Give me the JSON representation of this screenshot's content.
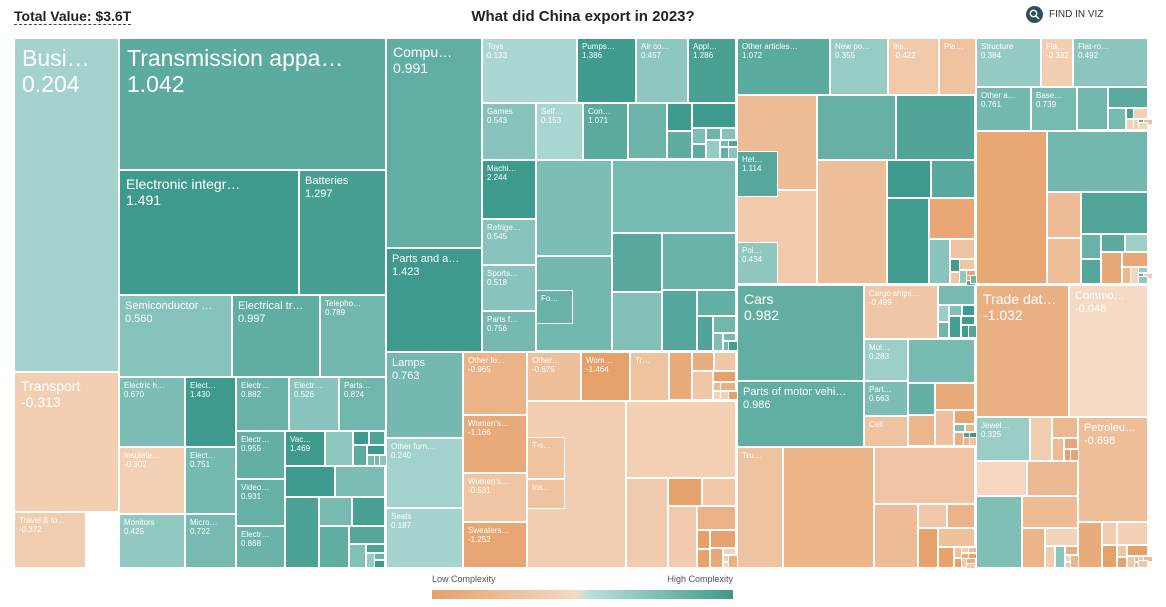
{
  "header": {
    "total_value": "Total Value: $3.6T",
    "title": "What did China export in 2023?",
    "find_label": "FIND IN VIZ",
    "find_icon": "search-icon"
  },
  "legend": {
    "low": "Low Complexity",
    "high": "High Complexity"
  },
  "colors": {
    "low": "#e6a06a",
    "mid_low": "#f6dcc8",
    "mid_high": "#b5ddd8",
    "high": "#3e9a8c"
  },
  "products": [
    {
      "name": "Busi…",
      "value": "0.204"
    },
    {
      "name": "Transmission appa…",
      "value": "1.042"
    },
    {
      "name": "Electronic integr…",
      "value": "1.491"
    },
    {
      "name": "Batteries",
      "value": "1.297"
    },
    {
      "name": "Semiconductor …",
      "value": "0.560"
    },
    {
      "name": "Electrical tr…",
      "value": "0.997"
    },
    {
      "name": "Telepho…",
      "value": "0.789"
    },
    {
      "name": "Transport",
      "value": "-0.313"
    },
    {
      "name": "Travel & to…",
      "value": "-0.372"
    },
    {
      "name": "Electric h…",
      "value": "0.670"
    },
    {
      "name": "Elect…",
      "value": "1.430"
    },
    {
      "name": "Insulate…",
      "value": "-0.302"
    },
    {
      "name": "Elect…",
      "value": "0.751"
    },
    {
      "name": "Monitors",
      "value": "0.425"
    },
    {
      "name": "Micro…",
      "value": "0.722"
    },
    {
      "name": "Electr…",
      "value": "0.882"
    },
    {
      "name": "Electr…",
      "value": "0.526"
    },
    {
      "name": "Parts…",
      "value": "0.824"
    },
    {
      "name": "Electr…",
      "value": "0.955"
    },
    {
      "name": "Vac…",
      "value": "1.469"
    },
    {
      "name": "Video…",
      "value": "0.931"
    },
    {
      "name": "Electr…",
      "value": "0.868"
    },
    {
      "name": "Compu…",
      "value": "0.991"
    },
    {
      "name": "Parts and a…",
      "value": "1.423"
    },
    {
      "name": "Toys",
      "value": "0.133"
    },
    {
      "name": "Pumps…",
      "value": "1.386"
    },
    {
      "name": "Air co…",
      "value": "0.457"
    },
    {
      "name": "Appl…",
      "value": "1.286"
    },
    {
      "name": "Games",
      "value": "0.543"
    },
    {
      "name": "Self…",
      "value": "0.153"
    },
    {
      "name": "Con…",
      "value": "1.071"
    },
    {
      "name": "Machi…",
      "value": "2.244"
    },
    {
      "name": "Refrige…",
      "value": "0.545"
    },
    {
      "name": "Sports…",
      "value": "0.518"
    },
    {
      "name": "Parts f…",
      "value": "0.756"
    },
    {
      "name": "Fo…",
      "value": ""
    },
    {
      "name": "Lamps",
      "value": "0.763"
    },
    {
      "name": "Other furn…",
      "value": "0.240"
    },
    {
      "name": "Seats",
      "value": "0.187"
    },
    {
      "name": "Other fo…",
      "value": "-0.965"
    },
    {
      "name": "Women's…",
      "value": "-1.166"
    },
    {
      "name": "Women's…",
      "value": "-0.531"
    },
    {
      "name": "Sweaters…",
      "value": "-1.252"
    },
    {
      "name": "Other…",
      "value": "-0.675"
    },
    {
      "name": "Wom…",
      "value": "-1.464"
    },
    {
      "name": "Tr…",
      "value": ""
    },
    {
      "name": "T-s…",
      "value": ""
    },
    {
      "name": "Ins…",
      "value": ""
    },
    {
      "name": "Other articles…",
      "value": "1.072"
    },
    {
      "name": "New po…",
      "value": "0.355"
    },
    {
      "name": "Ins…",
      "value": "-0.422"
    },
    {
      "name": "Pla…",
      "value": ""
    },
    {
      "name": "Structure",
      "value": "0.384"
    },
    {
      "name": "Fla…",
      "value": "-0.332"
    },
    {
      "name": "Flat-ro…",
      "value": "0.492"
    },
    {
      "name": "Other a…",
      "value": "0.761"
    },
    {
      "name": "Base…",
      "value": "0.739"
    },
    {
      "name": "Het…",
      "value": "1.114"
    },
    {
      "name": "Pol…",
      "value": "0.434"
    },
    {
      "name": "Cars",
      "value": "0.982"
    },
    {
      "name": "Parts of motor vehi…",
      "value": "0.986"
    },
    {
      "name": "Cargo ships…",
      "value": "-0.499"
    },
    {
      "name": "Mul…",
      "value": "0.283"
    },
    {
      "name": "Part…",
      "value": "0.663"
    },
    {
      "name": "Cell",
      "value": ""
    },
    {
      "name": "Tru…",
      "value": ""
    },
    {
      "name": "Trade dat…",
      "value": "-1.032"
    },
    {
      "name": "Commo…",
      "value": "-0.048"
    },
    {
      "name": "Jewel…",
      "value": "0.325"
    },
    {
      "name": "Petroleu…",
      "value": "-0.698"
    }
  ]
}
